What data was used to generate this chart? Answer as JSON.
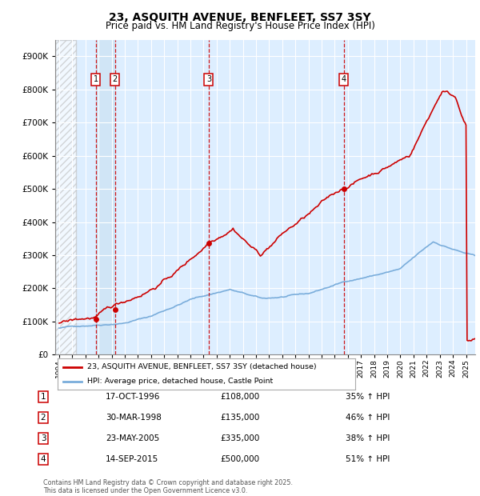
{
  "title": "23, ASQUITH AVENUE, BENFLEET, SS7 3SY",
  "subtitle": "Price paid vs. HM Land Registry's House Price Index (HPI)",
  "red_line_color": "#cc0000",
  "blue_line_color": "#7aaddb",
  "sale_dates_decimal": [
    1996.8,
    1998.25,
    2005.4,
    2015.7
  ],
  "sale_prices": [
    108000,
    135000,
    335000,
    500000
  ],
  "sale_labels": [
    "1",
    "2",
    "3",
    "4"
  ],
  "sale_info": [
    {
      "label": "1",
      "date": "17-OCT-1996",
      "price": "£108,000",
      "hpi": "35% ↑ HPI"
    },
    {
      "label": "2",
      "date": "30-MAR-1998",
      "price": "£135,000",
      "hpi": "46% ↑ HPI"
    },
    {
      "label": "3",
      "date": "23-MAY-2005",
      "price": "£335,000",
      "hpi": "38% ↑ HPI"
    },
    {
      "label": "4",
      "date": "14-SEP-2015",
      "price": "£500,000",
      "hpi": "51% ↑ HPI"
    }
  ],
  "legend_line1": "23, ASQUITH AVENUE, BENFLEET, SS7 3SY (detached house)",
  "legend_line2": "HPI: Average price, detached house, Castle Point",
  "footer": "Contains HM Land Registry data © Crown copyright and database right 2025.\nThis data is licensed under the Open Government Licence v3.0.",
  "ylim": [
    0,
    950000
  ],
  "xlim_start": 1993.7,
  "xlim_end": 2025.7,
  "hatch_end": 1995.3,
  "plot_bg_color": "#ddeeff",
  "highlight_bg": "#d0e5f5"
}
